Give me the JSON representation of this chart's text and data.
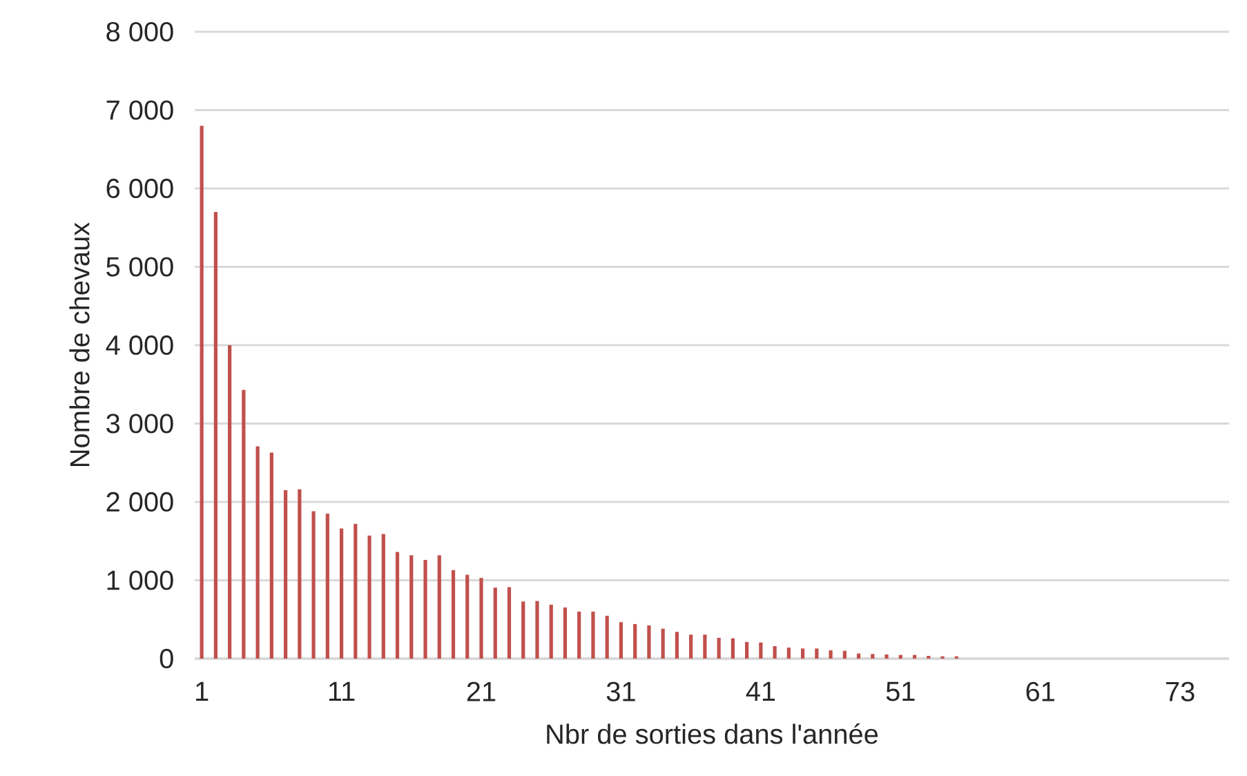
{
  "chart_data": {
    "type": "bar",
    "xlabel": "Nbr de sorties dans l'année",
    "ylabel": "Nombre de chevaux",
    "categories": [
      "1",
      null,
      null,
      null,
      null,
      null,
      null,
      null,
      null,
      null,
      "11",
      null,
      null,
      null,
      null,
      null,
      null,
      null,
      null,
      null,
      "21",
      null,
      null,
      null,
      null,
      null,
      null,
      null,
      null,
      null,
      "31",
      null,
      null,
      null,
      null,
      null,
      null,
      null,
      null,
      null,
      "41",
      null,
      null,
      null,
      null,
      null,
      null,
      null,
      null,
      null,
      "51",
      null,
      null,
      null,
      null,
      null,
      null,
      null,
      null,
      null,
      "61",
      null,
      null,
      null,
      null,
      null,
      null,
      null,
      null,
      null,
      "73",
      null,
      null,
      null
    ],
    "values": [
      6800,
      5700,
      4000,
      3430,
      2710,
      2630,
      2150,
      2160,
      1880,
      1850,
      1660,
      1720,
      1570,
      1590,
      1360,
      1320,
      1260,
      1320,
      1130,
      1070,
      1030,
      906,
      912,
      729,
      735,
      688,
      653,
      600,
      600,
      547,
      465,
      441,
      424,
      382,
      341,
      306,
      306,
      265,
      259,
      212,
      206,
      159,
      141,
      129,
      129,
      106,
      100,
      65,
      59,
      53,
      47,
      47,
      35,
      29,
      29,
      null,
      null,
      null,
      null,
      null,
      null,
      null,
      null,
      null,
      null,
      null,
      null,
      null,
      null,
      null,
      null,
      null,
      null,
      null
    ],
    "color": "#c0504d",
    "ylim": [
      0,
      8000
    ],
    "yticks": [
      {
        "value": 0,
        "label": "0"
      },
      {
        "value": 1000,
        "label": "1 000"
      },
      {
        "value": 2000,
        "label": "2 000"
      },
      {
        "value": 3000,
        "label": "3 000"
      },
      {
        "value": 4000,
        "label": "4 000"
      },
      {
        "value": 5000,
        "label": "5 000"
      },
      {
        "value": 6000,
        "label": "6 000"
      },
      {
        "value": 7000,
        "label": "7 000"
      },
      {
        "value": 8000,
        "label": "8 000"
      }
    ],
    "grid": "y"
  }
}
